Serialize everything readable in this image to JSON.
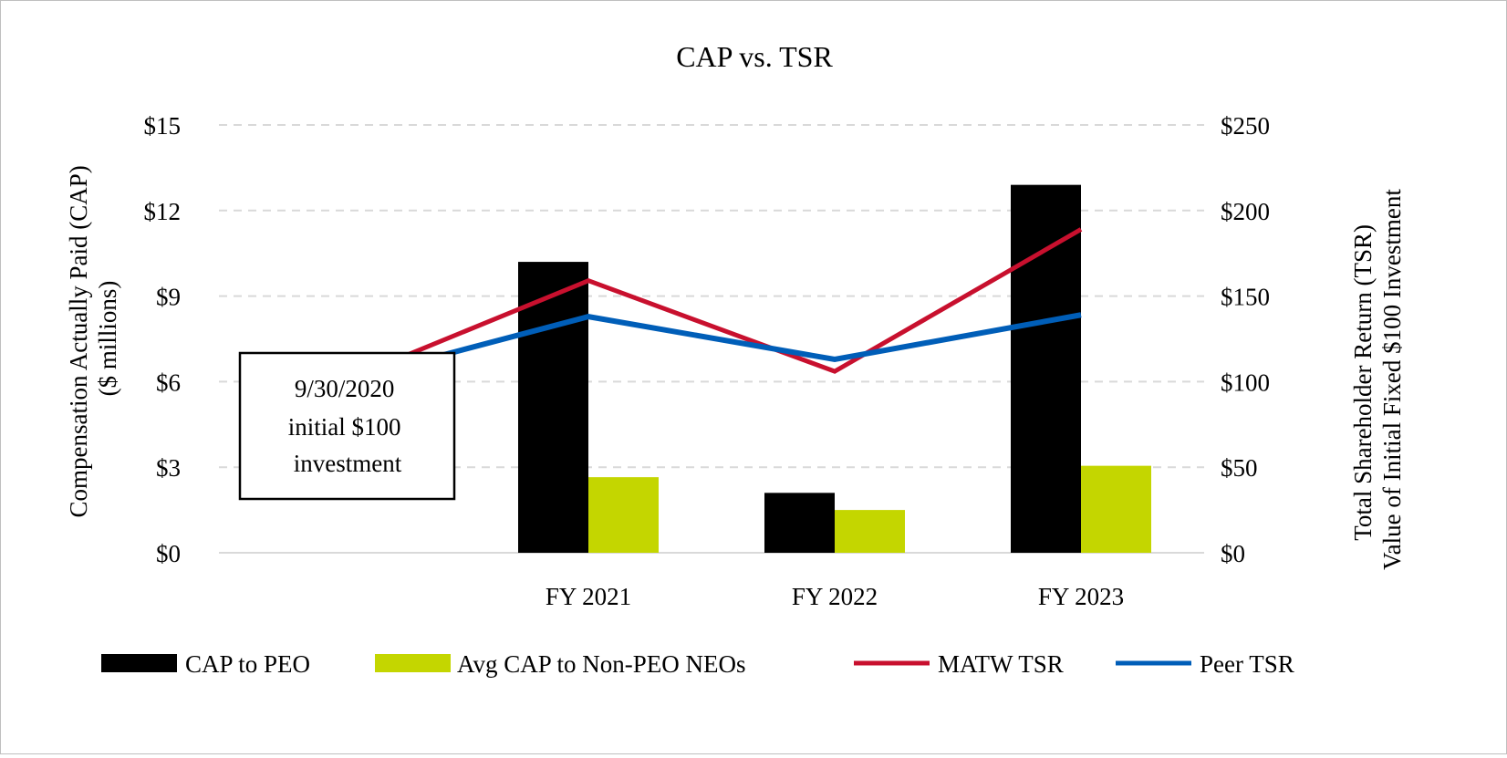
{
  "chart_data": {
    "type": "bar+line",
    "title": "CAP vs. TSR",
    "categories": [
      "",
      "FY 2021",
      "FY 2022",
      "FY 2023"
    ],
    "ylabel_left": [
      "Compensation Actually Paid (CAP)",
      "($ millions)"
    ],
    "ylabel_right": [
      "Total Shareholder Return (TSR)",
      "Value of Initial Fixed $100 Investment"
    ],
    "ylim_left": [
      0,
      15
    ],
    "yticks_left": [
      "$0",
      "$3",
      "$6",
      "$9",
      "$12",
      "$15"
    ],
    "ylim_right": [
      0,
      250
    ],
    "yticks_right": [
      "$0",
      "$50",
      "$100",
      "$150",
      "$200",
      "$250"
    ],
    "grid": true,
    "legend_position": "bottom",
    "bar_series": [
      {
        "name": "CAP to PEO",
        "color": "#000000",
        "values": [
          null,
          10.2,
          2.1,
          12.9
        ]
      },
      {
        "name": "Avg CAP to Non-PEO NEOs",
        "color": "#c4d600",
        "values": [
          null,
          2.65,
          1.5,
          3.05
        ]
      }
    ],
    "line_series": [
      {
        "name": "MATW TSR",
        "color": "#c8102e",
        "values": [
          100,
          159,
          106,
          189
        ]
      },
      {
        "name": "Peer TSR",
        "color": "#005eb8",
        "values": [
          100,
          138,
          113,
          139
        ]
      }
    ],
    "annotation": [
      "9/30/2020",
      "initial $100",
      "investment"
    ]
  }
}
